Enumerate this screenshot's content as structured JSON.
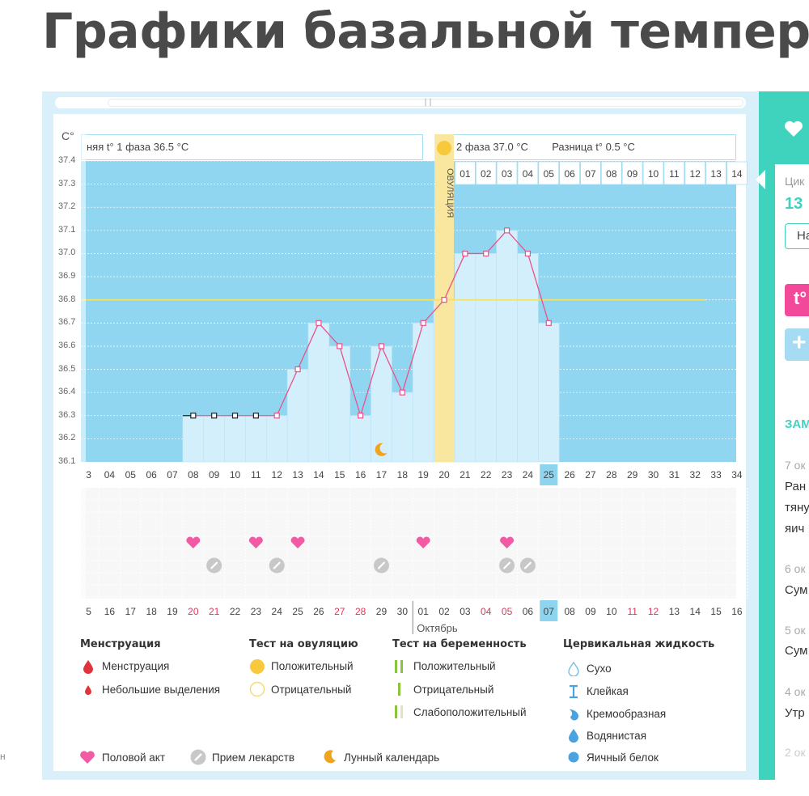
{
  "page": {
    "title": "Графики базальной температу"
  },
  "chart": {
    "y_unit": "C°",
    "phase1_label": "няя t° 1 фаза 36.5 °C",
    "phase2_label": "2 фаза 37.0 °C",
    "diff_label": "Разница t° 0.5 °C",
    "ovulation_label": "ОВУЛЯЦИЯ",
    "month_label": "Октябрь",
    "y_ticks": [
      "37.4",
      "37.3",
      "37.2",
      "37.1",
      "37.0",
      "36.9",
      "36.8",
      "36.7",
      "36.6",
      "36.5",
      "36.4",
      "36.3",
      "36.2",
      "36.1"
    ],
    "post_ovulation_days": [
      "01",
      "02",
      "03",
      "04",
      "05",
      "06",
      "07",
      "08",
      "09",
      "10",
      "11",
      "12",
      "13",
      "14"
    ],
    "cycle_days": [
      "3",
      "04",
      "05",
      "06",
      "07",
      "08",
      "09",
      "10",
      "11",
      "12",
      "13",
      "14",
      "15",
      "16",
      "17",
      "18",
      "19",
      "20",
      "21",
      "22",
      "23",
      "24",
      "25",
      "26",
      "27",
      "28",
      "29",
      "30",
      "31",
      "32",
      "33",
      "34"
    ],
    "today_cycle_day": "25",
    "dates": [
      "5",
      "16",
      "17",
      "18",
      "19",
      "20",
      "21",
      "22",
      "23",
      "24",
      "25",
      "26",
      "27",
      "28",
      "29",
      "30",
      "01",
      "02",
      "03",
      "04",
      "05",
      "06",
      "07",
      "08",
      "09",
      "10",
      "11",
      "12",
      "13",
      "14",
      "15",
      "16"
    ],
    "red_dates": [
      "20",
      "21",
      "27",
      "28",
      "04",
      "05",
      "11",
      "12"
    ],
    "today_date": "07"
  },
  "chart_data": {
    "type": "line",
    "ylabel": "C°",
    "ylim": [
      36.1,
      37.4
    ],
    "x": [
      "08",
      "09",
      "10",
      "11",
      "12",
      "13",
      "14",
      "15",
      "16",
      "17",
      "18",
      "19",
      "20",
      "21",
      "22",
      "23",
      "24",
      "25"
    ],
    "values": [
      36.3,
      36.3,
      36.3,
      36.3,
      36.3,
      36.5,
      36.7,
      36.6,
      36.3,
      36.6,
      36.4,
      36.7,
      36.8,
      37.0,
      37.0,
      37.1,
      37.0,
      36.7
    ],
    "coverline": 36.8,
    "ovulation_day": "20",
    "sex_days": [
      "08",
      "11",
      "13",
      "19",
      "23"
    ],
    "medication_days": [
      "09",
      "12",
      "17",
      "23",
      "24"
    ],
    "moon_day": "17"
  },
  "legend": {
    "menstruation": {
      "title": "Менструация",
      "items": [
        "Менструация",
        "Небольшие выделения"
      ]
    },
    "ovulation_test": {
      "title": "Тест на овуляцию",
      "items": [
        "Положительный",
        "Отрицательный"
      ]
    },
    "pregnancy_test": {
      "title": "Тест на беременность",
      "items": [
        "Положительный",
        "Отрицательный",
        "Слабоположительный"
      ]
    },
    "cervical": {
      "title": "Цервикальная жидкость",
      "items": [
        "Сухо",
        "Клейкая",
        "Кремообразная",
        "Водянистая",
        "Яичный белок"
      ]
    },
    "bottom": [
      "Половой акт",
      "Прием лекарств",
      "Лунный календарь"
    ]
  },
  "right_panel": {
    "cycle_label": "Цик",
    "cycle_value": "13",
    "button_label": "На",
    "temp_button": "t°",
    "add_button": "+",
    "notes_title": "ЗАМ",
    "notes": [
      {
        "date": "7 ок",
        "lines": [
          "Ран",
          "тяну",
          "яич"
        ]
      },
      {
        "date": "6 ок",
        "lines": [
          "Сум"
        ]
      },
      {
        "date": "5 ок",
        "lines": [
          "Сум"
        ]
      },
      {
        "date": "4 ок",
        "lines": [
          "Утр"
        ]
      },
      {
        "date": "2 ок",
        "lines": []
      }
    ]
  },
  "side_fragment": "н",
  "colors": {
    "chart_bg": "#91d6f1",
    "bar": "#d3effb",
    "line": "#e8528a",
    "ovulation": "#f9e79f",
    "heart": "#f25ba4",
    "accent": "#3fd3bd",
    "today": "#8fd4ee"
  }
}
